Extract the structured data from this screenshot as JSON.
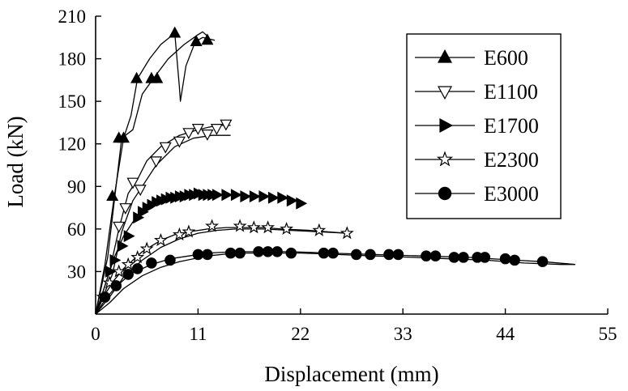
{
  "chart_data": {
    "type": "line",
    "xlabel": "Displacement (mm)",
    "ylabel": "Load (kN)",
    "xlim": [
      0,
      55
    ],
    "ylim": [
      0,
      210
    ],
    "xticks": [
      0,
      11,
      22,
      33,
      44,
      55
    ],
    "yticks": [
      30,
      60,
      90,
      120,
      150,
      180,
      210
    ],
    "ytick_top": 210,
    "legend_placement": "top-right",
    "grid": false,
    "series": [
      {
        "name": "E600",
        "marker": "triangle-up",
        "curves": [
          [
            [
              0,
              0
            ],
            [
              1,
              35
            ],
            [
              2,
              83
            ],
            [
              3,
              124
            ],
            [
              3.8,
              140
            ],
            [
              4.5,
              166
            ],
            [
              5.8,
              180
            ],
            [
              7,
              190
            ],
            [
              8.5,
              198
            ],
            [
              9,
              160
            ],
            [
              9.1,
              150
            ],
            [
              9.7,
              175
            ],
            [
              10.7,
              192
            ],
            [
              11.5,
              195
            ],
            [
              12.8,
              193
            ]
          ],
          [
            [
              0,
              0
            ],
            [
              1.3,
              40
            ],
            [
              2.8,
              124
            ],
            [
              4,
              130
            ],
            [
              5,
              155
            ],
            [
              6.2,
              166
            ],
            [
              7.8,
              180
            ],
            [
              9.5,
              190
            ],
            [
              11,
              197
            ],
            [
              11.5,
              199
            ],
            [
              12,
              196
            ]
          ]
        ],
        "markers": [
          [
            1.8,
            83
          ],
          [
            2.5,
            124
          ],
          [
            3,
            124
          ],
          [
            4.4,
            166
          ],
          [
            6,
            166
          ],
          [
            6.6,
            166
          ],
          [
            8.5,
            198
          ],
          [
            10.8,
            192
          ],
          [
            12,
            193
          ]
        ]
      },
      {
        "name": "E1100",
        "marker": "triangle-down",
        "curves": [
          [
            [
              0,
              0
            ],
            [
              1.5,
              30
            ],
            [
              2.5,
              60
            ],
            [
              3.5,
              85
            ],
            [
              4.5,
              95
            ],
            [
              5.5,
              108
            ],
            [
              7,
              118
            ],
            [
              9,
              126
            ],
            [
              11,
              130
            ],
            [
              13,
              133
            ],
            [
              14.5,
              133
            ]
          ],
          [
            [
              0,
              0
            ],
            [
              1.8,
              28
            ],
            [
              2.8,
              58
            ],
            [
              4,
              80
            ],
            [
              5,
              90
            ],
            [
              6.5,
              105
            ],
            [
              8.5,
              118
            ],
            [
              10.5,
              124
            ],
            [
              12.5,
              126
            ],
            [
              14.5,
              126
            ]
          ]
        ],
        "markers": [
          [
            2.5,
            62
          ],
          [
            3.2,
            75
          ],
          [
            4,
            93
          ],
          [
            4.8,
            88
          ],
          [
            6.5,
            108
          ],
          [
            7.5,
            118
          ],
          [
            9,
            122
          ],
          [
            10,
            128
          ],
          [
            11,
            131
          ],
          [
            12,
            127
          ],
          [
            13,
            131
          ],
          [
            14,
            134
          ]
        ]
      },
      {
        "name": "E1700",
        "marker": "triangle-right",
        "curves": [
          [
            [
              0,
              0
            ],
            [
              1,
              20
            ],
            [
              2,
              40
            ],
            [
              3,
              55
            ],
            [
              4,
              65
            ],
            [
              5,
              72
            ],
            [
              6,
              77
            ],
            [
              7.5,
              80
            ],
            [
              9,
              83
            ],
            [
              11,
              85
            ],
            [
              13,
              84
            ],
            [
              15,
              84
            ],
            [
              18,
              83
            ],
            [
              20,
              82
            ],
            [
              22.5,
              78
            ]
          ]
        ],
        "markers": [
          [
            1.5,
            30
          ],
          [
            2,
            38
          ],
          [
            2.8,
            48
          ],
          [
            3.5,
            55
          ],
          [
            4.5,
            68
          ],
          [
            5,
            72
          ],
          [
            5.5,
            75
          ],
          [
            6,
            77
          ],
          [
            6.5,
            79
          ],
          [
            7,
            80
          ],
          [
            7.5,
            81
          ],
          [
            8,
            82
          ],
          [
            8.5,
            82
          ],
          [
            9,
            83
          ],
          [
            9.5,
            83
          ],
          [
            10,
            84
          ],
          [
            10.5,
            84
          ],
          [
            11,
            85
          ],
          [
            11.5,
            84
          ],
          [
            12,
            84
          ],
          [
            12.5,
            84
          ],
          [
            13,
            84
          ],
          [
            14,
            84
          ],
          [
            15,
            84
          ],
          [
            16,
            83
          ],
          [
            17,
            83
          ],
          [
            18,
            83
          ],
          [
            19,
            82
          ],
          [
            20,
            82
          ],
          [
            21,
            80
          ],
          [
            22,
            78
          ]
        ]
      },
      {
        "name": "E2300",
        "marker": "star",
        "curves": [
          [
            [
              0,
              0
            ],
            [
              1,
              14
            ],
            [
              2,
              24
            ],
            [
              3,
              32
            ],
            [
              4,
              38
            ],
            [
              5,
              44
            ],
            [
              6,
              48
            ],
            [
              7,
              52
            ],
            [
              8.5,
              56
            ],
            [
              10,
              58
            ],
            [
              12,
              60
            ],
            [
              14,
              61
            ],
            [
              16,
              61
            ],
            [
              18,
              61
            ],
            [
              20,
              60
            ],
            [
              23,
              59
            ],
            [
              27,
              57
            ]
          ],
          [
            [
              0,
              0
            ],
            [
              1.5,
              12
            ],
            [
              3,
              26
            ],
            [
              5,
              38
            ],
            [
              7,
              47
            ],
            [
              9,
              53
            ],
            [
              11,
              57
            ],
            [
              13,
              59
            ],
            [
              15,
              60
            ],
            [
              18,
              60
            ],
            [
              21,
              59
            ],
            [
              24,
              58
            ],
            [
              27,
              57
            ]
          ]
        ],
        "markers": [
          [
            0.8,
            12
          ],
          [
            1.5,
            22
          ],
          [
            2.5,
            30
          ],
          [
            3.5,
            35
          ],
          [
            4.5,
            40
          ],
          [
            5.5,
            46
          ],
          [
            7,
            52
          ],
          [
            9,
            56
          ],
          [
            10,
            58
          ],
          [
            12.5,
            62
          ],
          [
            15.5,
            62
          ],
          [
            17,
            61
          ],
          [
            18.5,
            61
          ],
          [
            20.5,
            60
          ],
          [
            24,
            59
          ],
          [
            27,
            57
          ]
        ]
      },
      {
        "name": "E3000",
        "marker": "circle",
        "curves": [
          [
            [
              0,
              0
            ],
            [
              1,
              10
            ],
            [
              2,
              18
            ],
            [
              3,
              24
            ],
            [
              4,
              29
            ],
            [
              5,
              32
            ],
            [
              6,
              35
            ],
            [
              8,
              39
            ],
            [
              10,
              41
            ],
            [
              12,
              43
            ],
            [
              15,
              44
            ],
            [
              18,
              44
            ],
            [
              21,
              44
            ],
            [
              25,
              43
            ],
            [
              30,
              42
            ],
            [
              35,
              41
            ],
            [
              40,
              40
            ],
            [
              45,
              38
            ],
            [
              48,
              37
            ],
            [
              51.5,
              35
            ]
          ],
          [
            [
              0,
              0
            ],
            [
              1.5,
              8
            ],
            [
              3,
              18
            ],
            [
              5,
              27
            ],
            [
              7,
              33
            ],
            [
              9,
              37
            ],
            [
              12,
              41
            ],
            [
              15,
              43
            ],
            [
              18,
              43
            ],
            [
              22,
              43
            ],
            [
              26,
              42
            ],
            [
              30,
              41
            ],
            [
              34,
              40
            ],
            [
              38,
              39
            ],
            [
              42,
              38
            ],
            [
              46,
              36
            ],
            [
              50,
              35
            ],
            [
              51.5,
              35
            ]
          ]
        ],
        "markers": [
          [
            1,
            12
          ],
          [
            2.2,
            20
          ],
          [
            3.5,
            28
          ],
          [
            4.5,
            32
          ],
          [
            6,
            36
          ],
          [
            8,
            38
          ],
          [
            11,
            42
          ],
          [
            12,
            42
          ],
          [
            14.5,
            43
          ],
          [
            15.5,
            43
          ],
          [
            17.5,
            44
          ],
          [
            18.5,
            44
          ],
          [
            19.5,
            44
          ],
          [
            21,
            43
          ],
          [
            24.5,
            43
          ],
          [
            25.5,
            43
          ],
          [
            28,
            42
          ],
          [
            29.5,
            42
          ],
          [
            31.5,
            42
          ],
          [
            32.5,
            42
          ],
          [
            35.5,
            41
          ],
          [
            36.5,
            41
          ],
          [
            38.5,
            40
          ],
          [
            39.5,
            40
          ],
          [
            41,
            40
          ],
          [
            41.8,
            40
          ],
          [
            44,
            39
          ],
          [
            45,
            38
          ],
          [
            48,
            37
          ]
        ]
      }
    ]
  }
}
